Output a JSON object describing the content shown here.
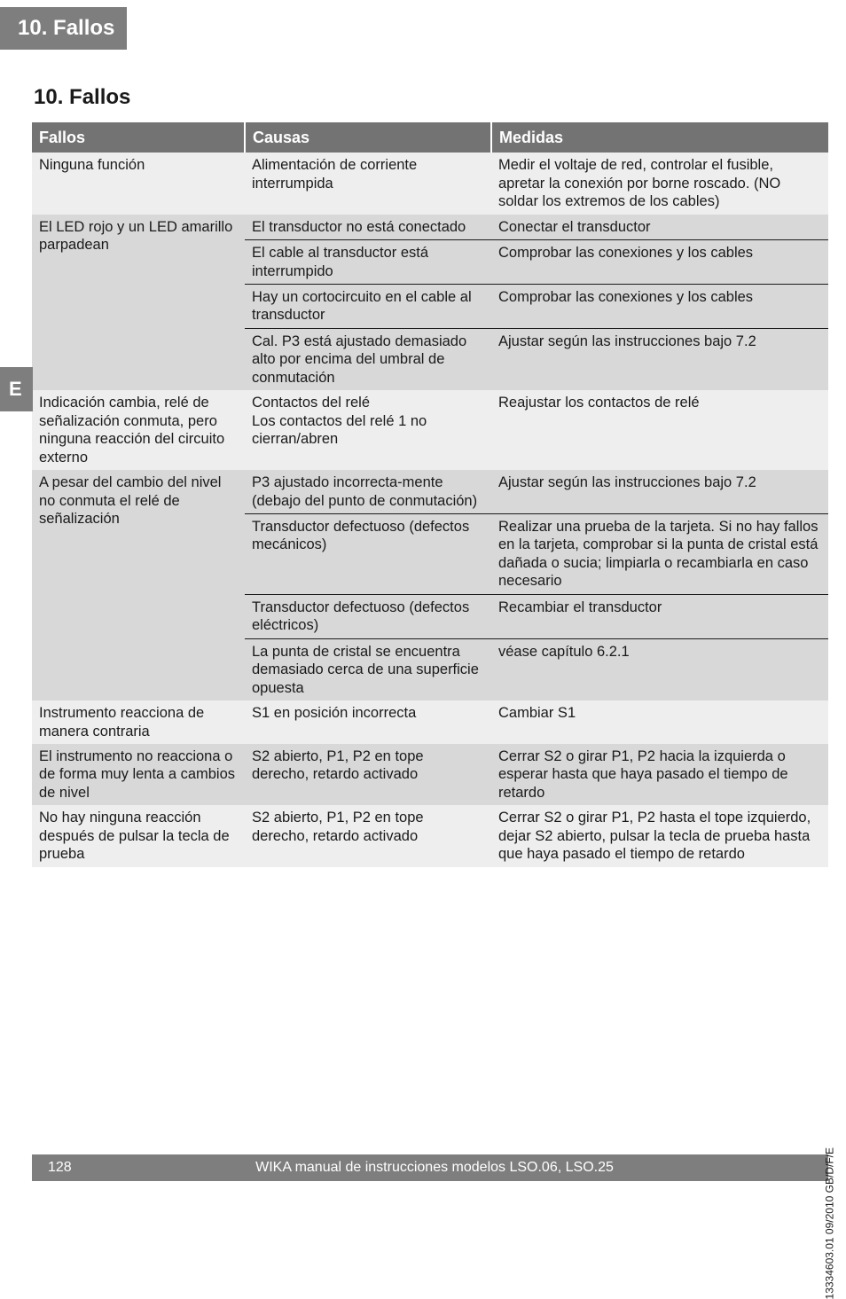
{
  "chapter_tag": "10. Fallos",
  "section_heading": "10. Fallos",
  "lang_tab": "E",
  "table": {
    "headers": {
      "a": "Fallos",
      "b": "Causas",
      "c": "Medidas"
    },
    "groups": [
      {
        "shade": "light",
        "fallo": "Ninguna función",
        "rows": [
          {
            "causa": "Alimentación de corriente interrumpida",
            "medida": "Medir el voltaje de red, controlar el fusible, apretar la conexión por borne roscado. (NO soldar los extremos de los cables)"
          }
        ]
      },
      {
        "shade": "dark",
        "fallo": "El LED rojo y un LED amarillo parpadean",
        "rows": [
          {
            "causa": "El transductor no está conectado",
            "medida": "Conectar el transductor"
          },
          {
            "causa": "El cable al transductor está interrumpido",
            "medida": "Comprobar las conexiones y los cables"
          },
          {
            "causa": "Hay un cortocircuito en el cable al transductor",
            "medida": "Comprobar las conexiones y los cables"
          },
          {
            "causa": "Cal. P3 está ajustado demasiado alto por encima del umbral de conmutación",
            "medida": "Ajustar según las instrucciones bajo 7.2"
          }
        ]
      },
      {
        "shade": "light",
        "fallo": "Indicación cambia, relé de señalización conmuta, pero ninguna reacción del circuito externo",
        "rows": [
          {
            "causa": "Contactos del relé\nLos contactos del relé 1 no cierran/abren",
            "medida": "Reajustar los contactos de relé"
          }
        ]
      },
      {
        "shade": "dark",
        "fallo": "A pesar del cambio del nivel no conmuta el relé de señalización",
        "rows": [
          {
            "causa": "P3 ajustado incorrecta-mente (debajo del punto de conmutación)",
            "medida": "Ajustar según las instrucciones bajo 7.2"
          },
          {
            "causa": "Transductor defectuoso (defectos mecánicos)",
            "medida": "Realizar una prueba de la tarjeta. Si no hay fallos en la tarjeta, comprobar si la punta de cristal está dañada o sucia; limpiarla o recambiarla en caso necesario"
          },
          {
            "causa": "Transductor defectuoso (defectos eléctricos)",
            "medida": "Recambiar el transductor"
          },
          {
            "causa": "La punta de cristal se encuentra demasiado cerca de una superficie opuesta",
            "medida": "véase capítulo 6.2.1"
          }
        ]
      },
      {
        "shade": "light",
        "fallo": "Instrumento reacciona de manera contraria",
        "rows": [
          {
            "causa": "S1 en posición incorrecta",
            "medida": "Cambiar S1"
          }
        ]
      },
      {
        "shade": "dark",
        "fallo": "El instrumento no reacciona o de forma muy lenta a cambios de nivel",
        "rows": [
          {
            "causa": "S2 abierto, P1, P2 en tope derecho, retardo activado",
            "medida": "Cerrar S2 o girar P1, P2 hacia la izquierda o esperar hasta que haya pasado el tiempo de retardo"
          }
        ]
      },
      {
        "shade": "light",
        "fallo": "No hay ninguna reacción después de pulsar la tecla de prueba",
        "rows": [
          {
            "causa": "S2 abierto, P1, P2 en tope derecho, retardo activado",
            "medida": "Cerrar S2 o girar P1, P2 hasta el tope izquierdo, dejar S2 abierto, pulsar la tecla de prueba hasta que haya pasado el tiempo de retardo"
          }
        ]
      }
    ]
  },
  "footer": {
    "page": "128",
    "text": "WIKA manual de instrucciones modelos LSO.06, LSO.25"
  },
  "vertical_note": "13334603.01 09/2010 GB/D/F/E"
}
